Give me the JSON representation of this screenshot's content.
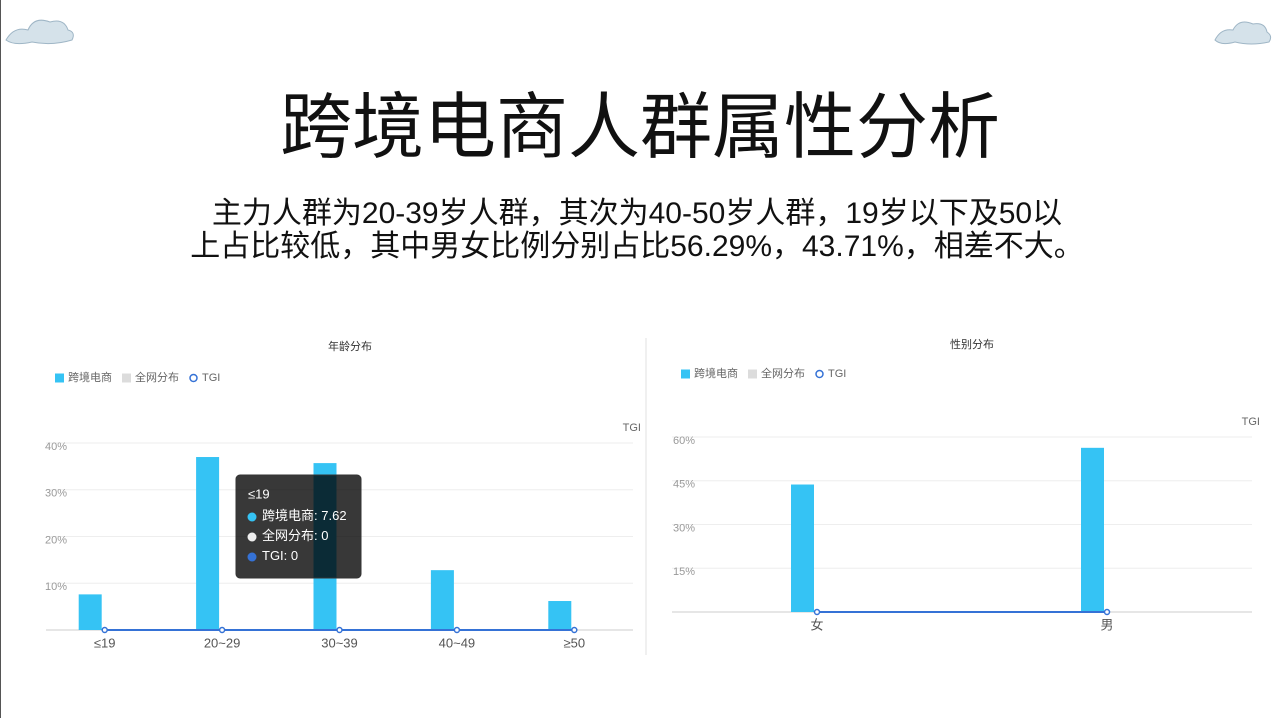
{
  "title": "跨境电商人群属性分析",
  "subtitle_lines": [
    "主力人群为20-39岁人群，其次为40-50岁人群，19岁以下及50以",
    "上占比较低，其中男女比例分别占比56.29%，43.71%，相差不大。"
  ],
  "chart_data": [
    {
      "type": "bar",
      "title": "年龄分布",
      "categories": [
        "≤19",
        "20~29",
        "30~39",
        "40~49",
        "≥50"
      ],
      "series": [
        {
          "name": "跨境电商",
          "color": "#35c3f4",
          "values": [
            7.62,
            37,
            35.7,
            12.8,
            6.2
          ]
        },
        {
          "name": "全网分布",
          "color": "#dcdcdc",
          "values": [
            0,
            0,
            0,
            0,
            0
          ]
        },
        {
          "name": "TGI",
          "color": "#3572d6",
          "type": "line",
          "values": [
            0,
            0,
            0,
            0,
            0
          ]
        }
      ],
      "ylim": [
        0,
        40
      ],
      "yticks": [
        {
          "value": 10,
          "label": "10%"
        },
        {
          "value": 20,
          "label": "20%"
        },
        {
          "value": 30,
          "label": "30%"
        },
        {
          "value": 40,
          "label": "40%"
        }
      ],
      "y2_label": "TGI",
      "grid": true,
      "legend": "top-left",
      "tooltip_index": 0
    },
    {
      "type": "bar",
      "title": "性别分布",
      "categories": [
        "女",
        "男"
      ],
      "series": [
        {
          "name": "跨境电商",
          "color": "#35c3f4",
          "values": [
            43.71,
            56.29
          ]
        },
        {
          "name": "全网分布",
          "color": "#dcdcdc",
          "values": [
            0,
            0
          ]
        },
        {
          "name": "TGI",
          "color": "#3572d6",
          "type": "line",
          "values": [
            0,
            0
          ]
        }
      ],
      "ylim": [
        0,
        60
      ],
      "yticks": [
        {
          "value": 15,
          "label": "15%"
        },
        {
          "value": 30,
          "label": "30%"
        },
        {
          "value": 45,
          "label": "45%"
        },
        {
          "value": 60,
          "label": "60%"
        }
      ],
      "y2_label": "TGI",
      "grid": true,
      "legend": "top-left"
    }
  ]
}
